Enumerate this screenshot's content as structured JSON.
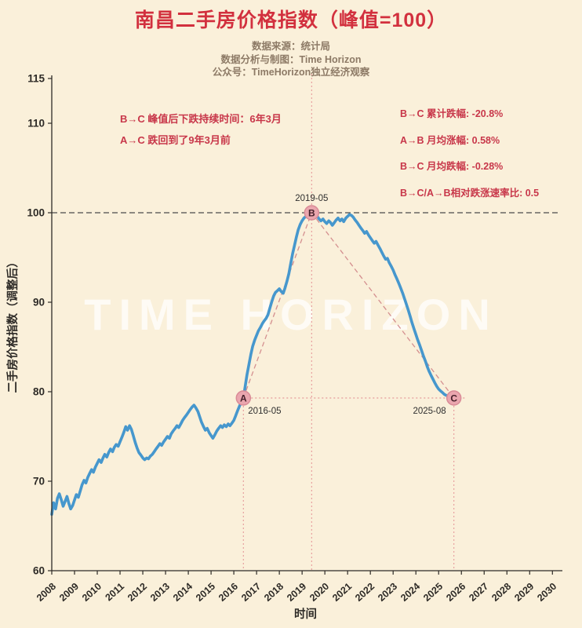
{
  "title": "南昌二手房价格指数（峰值=100）",
  "subtitles": [
    "数据来源：统计局",
    "数据分析与制图：Time Horizon",
    "公众号：TimeHorizon独立经济观察"
  ],
  "watermark": "TIME HORIZON",
  "annotations": {
    "left": [
      "B→C 峰值后下跌持续时间：6年3月",
      "A→C 跌回到了9年3月前"
    ],
    "right": [
      "B→C 累计跌幅: -20.8%",
      "A→B 月均涨幅: 0.58%",
      "B→C 月均跌幅: -0.28%",
      "B→C/A→B相对跌涨速率比: 0.5"
    ]
  },
  "colors": {
    "background": "#faf0da",
    "title": "#d2303e",
    "subtitle": "#8d7a66",
    "annotation": "#c8374a",
    "axis": "#2e2b27",
    "peak_line": "#4a4a4a",
    "ref_red": "#e59a9a",
    "connector": "#d48f8f",
    "marker_fill": "#eaa6ae",
    "marker_edge": "#d98a96",
    "marker_letter": "#46202a",
    "date_label": "#2f2f2f"
  },
  "chart_data": {
    "type": "line",
    "title": "南昌二手房价格指数（峰值=100）",
    "xlabel": "时间",
    "ylabel": "二手房价格指数（调整后）",
    "xlim": [
      2008,
      2030.3
    ],
    "ylim": [
      60,
      115
    ],
    "xticks": [
      2008,
      2009,
      2010,
      2011,
      2012,
      2013,
      2014,
      2015,
      2016,
      2017,
      2018,
      2019,
      2020,
      2021,
      2022,
      2023,
      2024,
      2025,
      2026,
      2027,
      2028,
      2029,
      2030
    ],
    "yticks": [
      60,
      70,
      80,
      90,
      100,
      110,
      115
    ],
    "grid": false,
    "legend": "none",
    "line_color": "#4697cd",
    "series": [
      {
        "name": "南昌二手房价格指数",
        "points": [
          [
            2008.0,
            66.3
          ],
          [
            2008.08,
            67.6
          ],
          [
            2008.17,
            66.9
          ],
          [
            2008.25,
            68.1
          ],
          [
            2008.33,
            68.6
          ],
          [
            2008.42,
            67.9
          ],
          [
            2008.5,
            67.2
          ],
          [
            2008.58,
            67.7
          ],
          [
            2008.67,
            68.3
          ],
          [
            2008.75,
            67.5
          ],
          [
            2008.83,
            66.9
          ],
          [
            2008.92,
            67.3
          ],
          [
            2009.0,
            67.9
          ],
          [
            2009.08,
            68.5
          ],
          [
            2009.17,
            68.2
          ],
          [
            2009.25,
            68.9
          ],
          [
            2009.33,
            69.6
          ],
          [
            2009.42,
            70.1
          ],
          [
            2009.5,
            69.8
          ],
          [
            2009.58,
            70.4
          ],
          [
            2009.67,
            70.9
          ],
          [
            2009.75,
            71.3
          ],
          [
            2009.83,
            71.0
          ],
          [
            2009.92,
            71.6
          ],
          [
            2010.0,
            72.0
          ],
          [
            2010.08,
            72.4
          ],
          [
            2010.17,
            72.1
          ],
          [
            2010.25,
            72.6
          ],
          [
            2010.33,
            73.0
          ],
          [
            2010.42,
            72.7
          ],
          [
            2010.5,
            73.2
          ],
          [
            2010.58,
            73.6
          ],
          [
            2010.67,
            73.3
          ],
          [
            2010.75,
            73.8
          ],
          [
            2010.83,
            74.1
          ],
          [
            2010.92,
            73.9
          ],
          [
            2011.0,
            74.4
          ],
          [
            2011.08,
            74.9
          ],
          [
            2011.17,
            75.5
          ],
          [
            2011.25,
            76.1
          ],
          [
            2011.33,
            75.7
          ],
          [
            2011.42,
            76.2
          ],
          [
            2011.5,
            75.8
          ],
          [
            2011.58,
            75.1
          ],
          [
            2011.67,
            74.3
          ],
          [
            2011.75,
            73.7
          ],
          [
            2011.83,
            73.2
          ],
          [
            2011.92,
            72.9
          ],
          [
            2012.0,
            72.6
          ],
          [
            2012.08,
            72.4
          ],
          [
            2012.17,
            72.6
          ],
          [
            2012.25,
            72.5
          ],
          [
            2012.33,
            72.8
          ],
          [
            2012.42,
            73.0
          ],
          [
            2012.5,
            73.3
          ],
          [
            2012.58,
            73.6
          ],
          [
            2012.67,
            73.9
          ],
          [
            2012.75,
            74.2
          ],
          [
            2012.83,
            74.0
          ],
          [
            2012.92,
            74.4
          ],
          [
            2013.0,
            74.7
          ],
          [
            2013.08,
            75.0
          ],
          [
            2013.17,
            74.8
          ],
          [
            2013.25,
            75.3
          ],
          [
            2013.33,
            75.6
          ],
          [
            2013.42,
            75.9
          ],
          [
            2013.5,
            76.2
          ],
          [
            2013.58,
            76.0
          ],
          [
            2013.67,
            76.4
          ],
          [
            2013.75,
            76.8
          ],
          [
            2013.83,
            77.1
          ],
          [
            2013.92,
            77.4
          ],
          [
            2014.0,
            77.7
          ],
          [
            2014.08,
            78.0
          ],
          [
            2014.17,
            78.3
          ],
          [
            2014.25,
            78.5
          ],
          [
            2014.33,
            78.2
          ],
          [
            2014.42,
            77.8
          ],
          [
            2014.5,
            77.2
          ],
          [
            2014.58,
            76.6
          ],
          [
            2014.67,
            76.1
          ],
          [
            2014.75,
            75.7
          ],
          [
            2014.83,
            75.9
          ],
          [
            2014.92,
            75.4
          ],
          [
            2015.0,
            75.1
          ],
          [
            2015.08,
            74.8
          ],
          [
            2015.17,
            75.2
          ],
          [
            2015.25,
            75.6
          ],
          [
            2015.33,
            75.9
          ],
          [
            2015.42,
            76.2
          ],
          [
            2015.5,
            76.0
          ],
          [
            2015.58,
            76.3
          ],
          [
            2015.67,
            76.1
          ],
          [
            2015.75,
            76.4
          ],
          [
            2015.83,
            76.2
          ],
          [
            2015.92,
            76.5
          ],
          [
            2016.0,
            76.8
          ],
          [
            2016.08,
            77.3
          ],
          [
            2016.17,
            77.9
          ],
          [
            2016.25,
            78.4
          ],
          [
            2016.33,
            78.9
          ],
          [
            2016.42,
            79.3
          ],
          [
            2016.5,
            80.6
          ],
          [
            2016.58,
            81.9
          ],
          [
            2016.67,
            83.1
          ],
          [
            2016.75,
            84.2
          ],
          [
            2016.83,
            85.1
          ],
          [
            2016.92,
            85.8
          ],
          [
            2017.0,
            86.3
          ],
          [
            2017.08,
            86.8
          ],
          [
            2017.17,
            87.2
          ],
          [
            2017.25,
            87.6
          ],
          [
            2017.33,
            87.9
          ],
          [
            2017.42,
            88.2
          ],
          [
            2017.5,
            88.6
          ],
          [
            2017.58,
            89.3
          ],
          [
            2017.67,
            90.1
          ],
          [
            2017.75,
            90.7
          ],
          [
            2017.83,
            91.1
          ],
          [
            2017.92,
            91.3
          ],
          [
            2018.0,
            91.5
          ],
          [
            2018.08,
            91.2
          ],
          [
            2018.17,
            91.0
          ],
          [
            2018.25,
            91.6
          ],
          [
            2018.33,
            92.3
          ],
          [
            2018.42,
            93.2
          ],
          [
            2018.5,
            94.3
          ],
          [
            2018.58,
            95.4
          ],
          [
            2018.67,
            96.4
          ],
          [
            2018.75,
            97.3
          ],
          [
            2018.83,
            98.1
          ],
          [
            2018.92,
            98.7
          ],
          [
            2019.0,
            99.1
          ],
          [
            2019.08,
            99.4
          ],
          [
            2019.17,
            99.6
          ],
          [
            2019.25,
            99.8
          ],
          [
            2019.33,
            99.9
          ],
          [
            2019.42,
            100.0
          ],
          [
            2019.5,
            99.7
          ],
          [
            2019.58,
            99.5
          ],
          [
            2019.67,
            99.6
          ],
          [
            2019.75,
            99.3
          ],
          [
            2019.83,
            99.1
          ],
          [
            2019.92,
            99.3
          ],
          [
            2020.0,
            99.0
          ],
          [
            2020.08,
            98.8
          ],
          [
            2020.17,
            99.1
          ],
          [
            2020.25,
            98.9
          ],
          [
            2020.33,
            98.6
          ],
          [
            2020.42,
            98.9
          ],
          [
            2020.5,
            99.2
          ],
          [
            2020.58,
            99.4
          ],
          [
            2020.67,
            99.1
          ],
          [
            2020.75,
            99.3
          ],
          [
            2020.83,
            99.0
          ],
          [
            2020.92,
            99.4
          ],
          [
            2021.0,
            99.6
          ],
          [
            2021.08,
            99.8
          ],
          [
            2021.17,
            99.7
          ],
          [
            2021.25,
            99.5
          ],
          [
            2021.33,
            99.2
          ],
          [
            2021.42,
            98.9
          ],
          [
            2021.5,
            98.6
          ],
          [
            2021.58,
            98.3
          ],
          [
            2021.67,
            98.0
          ],
          [
            2021.75,
            97.7
          ],
          [
            2021.83,
            97.9
          ],
          [
            2021.92,
            97.5
          ],
          [
            2022.0,
            97.2
          ],
          [
            2022.08,
            96.9
          ],
          [
            2022.17,
            96.6
          ],
          [
            2022.25,
            96.8
          ],
          [
            2022.33,
            96.4
          ],
          [
            2022.42,
            96.0
          ],
          [
            2022.5,
            95.6
          ],
          [
            2022.58,
            95.2
          ],
          [
            2022.67,
            94.8
          ],
          [
            2022.75,
            94.9
          ],
          [
            2022.83,
            94.4
          ],
          [
            2022.92,
            94.0
          ],
          [
            2023.0,
            93.6
          ],
          [
            2023.08,
            93.1
          ],
          [
            2023.17,
            92.6
          ],
          [
            2023.25,
            92.1
          ],
          [
            2023.33,
            91.6
          ],
          [
            2023.42,
            91.0
          ],
          [
            2023.5,
            90.4
          ],
          [
            2023.58,
            89.8
          ],
          [
            2023.67,
            89.1
          ],
          [
            2023.75,
            88.4
          ],
          [
            2023.83,
            87.7
          ],
          [
            2023.92,
            87.0
          ],
          [
            2024.0,
            86.4
          ],
          [
            2024.08,
            85.8
          ],
          [
            2024.17,
            85.2
          ],
          [
            2024.25,
            84.6
          ],
          [
            2024.33,
            84.0
          ],
          [
            2024.42,
            83.4
          ],
          [
            2024.5,
            82.8
          ],
          [
            2024.58,
            82.3
          ],
          [
            2024.67,
            81.8
          ],
          [
            2024.75,
            81.4
          ],
          [
            2024.83,
            81.0
          ],
          [
            2024.92,
            80.6
          ],
          [
            2025.0,
            80.3
          ],
          [
            2025.08,
            80.1
          ],
          [
            2025.17,
            79.9
          ],
          [
            2025.25,
            79.7
          ],
          [
            2025.33,
            79.6
          ],
          [
            2025.42,
            79.5
          ],
          [
            2025.5,
            79.4
          ],
          [
            2025.58,
            79.35
          ],
          [
            2025.67,
            79.3
          ]
        ]
      }
    ],
    "markers": [
      {
        "label": "A",
        "date": "2016-05",
        "x": 2016.42,
        "y": 79.3,
        "date_pos": "below-right",
        "vline": "below"
      },
      {
        "label": "B",
        "date": "2019-05",
        "x": 2019.42,
        "y": 100.0,
        "date_pos": "above",
        "vline": "full"
      },
      {
        "label": "C",
        "date": "2025-08",
        "x": 2025.67,
        "y": 79.3,
        "date_pos": "below-left",
        "vline": "below"
      }
    ],
    "connectors": [
      [
        "A",
        "B"
      ],
      [
        "B",
        "C"
      ]
    ],
    "reference_lines": {
      "peak_value": 100,
      "trough_level": 79.3
    }
  }
}
